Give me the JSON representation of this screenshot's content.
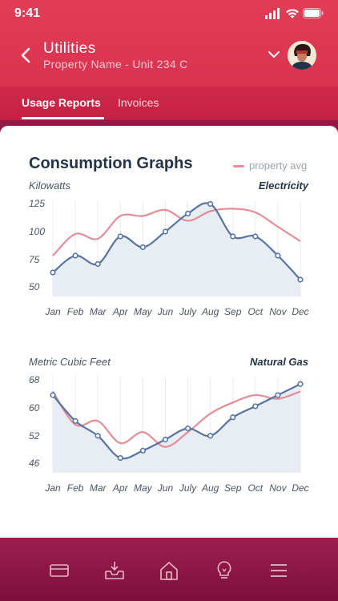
{
  "status": {
    "time": "9:41"
  },
  "nav": {
    "title": "Utilities",
    "subtitle": "Property Name - Unit 234 C"
  },
  "tabs": [
    {
      "label": "Usage Reports",
      "active": true
    },
    {
      "label": "Invoices",
      "active": false
    }
  ],
  "card": {
    "title": "Consumption Graphs",
    "legend_label": "property avg"
  },
  "colors": {
    "unit_line": "#5774a0",
    "avg_line": "#e58d97",
    "area_fill": "#e6eaf2",
    "header": "#dc3552",
    "bottom_bar": "#8e1a48"
  },
  "chart_data": [
    {
      "type": "area",
      "unit_label": "Kilowatts",
      "metric_label": "Electricity",
      "categories": [
        "Jan",
        "Feb",
        "Mar",
        "Apr",
        "May",
        "Jun",
        "July",
        "Aug",
        "Sep",
        "Oct",
        "Nov",
        "Dec"
      ],
      "y_ticks": [
        "125",
        "100",
        "75",
        "50"
      ],
      "ylim": [
        50,
        130
      ],
      "series": [
        {
          "values": [
            70,
            84,
            77,
            100,
            91,
            104,
            119,
            127,
            100,
            100,
            84,
            64
          ]
        },
        {
          "name": "property avg",
          "values": [
            84,
            102,
            98,
            117,
            117,
            122,
            113,
            121,
            123,
            120,
            108,
            96
          ]
        }
      ]
    },
    {
      "type": "area",
      "unit_label": "Metric Cubic Feet",
      "metric_label": "Natural Gas",
      "categories": [
        "Jan",
        "Feb",
        "Mar",
        "Apr",
        "May",
        "Jun",
        "July",
        "Aug",
        "Sep",
        "Oct",
        "Nov",
        "Dec"
      ],
      "y_ticks": [
        "68",
        "60",
        "52",
        "46"
      ],
      "ylim": [
        45,
        71
      ],
      "series": [
        {
          "values": [
            66,
            59,
            55,
            49,
            51,
            54,
            57,
            55,
            60,
            63,
            66,
            69
          ]
        },
        {
          "name": "property avg",
          "values": [
            67,
            58,
            59,
            53,
            56,
            52,
            56,
            61,
            64,
            66,
            65,
            67
          ]
        }
      ]
    }
  ],
  "bottom_nav": [
    "card-icon",
    "inbox-download-icon",
    "home-icon",
    "lightbulb-icon",
    "menu-icon"
  ]
}
